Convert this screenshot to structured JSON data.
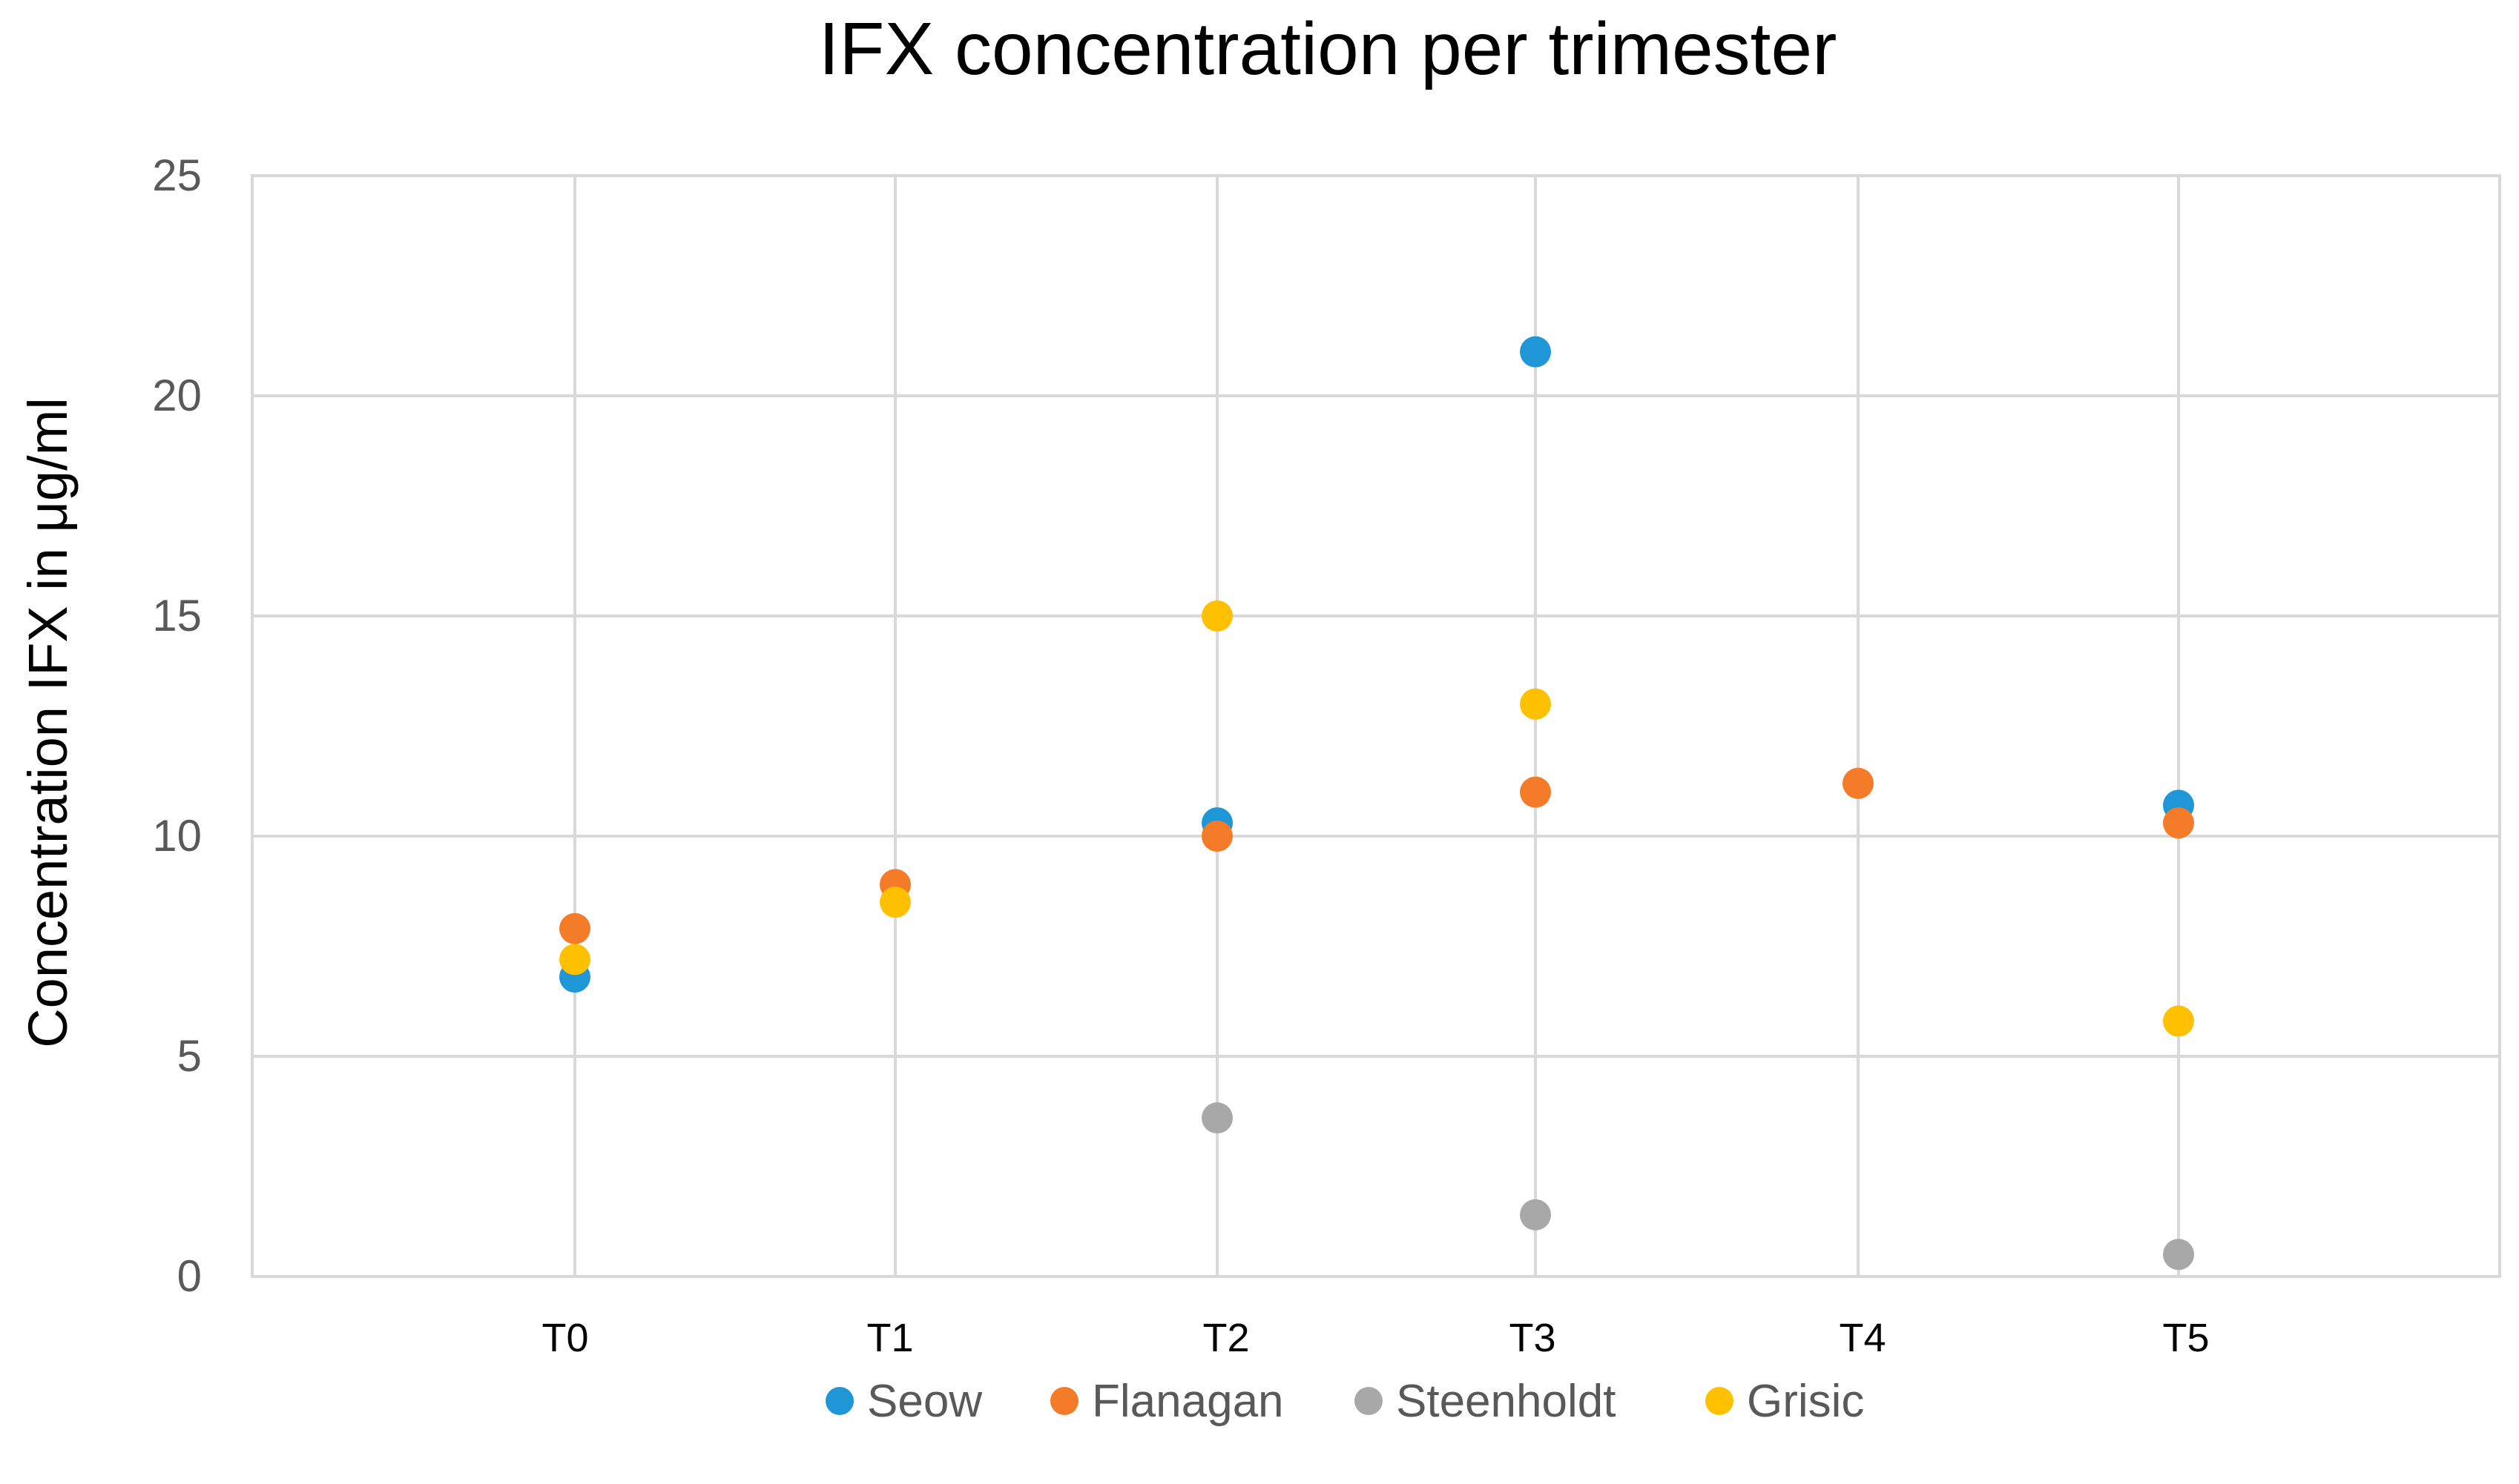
{
  "chart_data": {
    "type": "scatter",
    "title": "IFX concentration per trimester",
    "xlabel": "",
    "ylabel": "Concentration IFX in μg/ml",
    "categories": [
      "T0",
      "T1",
      "T2",
      "T3",
      "T4",
      "T5"
    ],
    "ylim": [
      0,
      25
    ],
    "yticks": [
      0,
      5,
      10,
      15,
      20,
      25
    ],
    "grid": true,
    "legend_position": "bottom",
    "series": [
      {
        "name": "Seow",
        "color": "#1f96d6",
        "values": [
          6.8,
          null,
          10.3,
          21.0,
          null,
          10.7
        ]
      },
      {
        "name": "Flanagan",
        "color": "#f47b27",
        "values": [
          7.9,
          8.9,
          10.0,
          11.0,
          11.2,
          10.3
        ]
      },
      {
        "name": "Steenholdt",
        "color": "#a8a8a8",
        "values": [
          null,
          null,
          3.6,
          1.4,
          null,
          0.5
        ]
      },
      {
        "name": "Grisic",
        "color": "#ffc000",
        "values": [
          7.2,
          8.5,
          15.0,
          13.0,
          null,
          5.8
        ]
      }
    ]
  }
}
